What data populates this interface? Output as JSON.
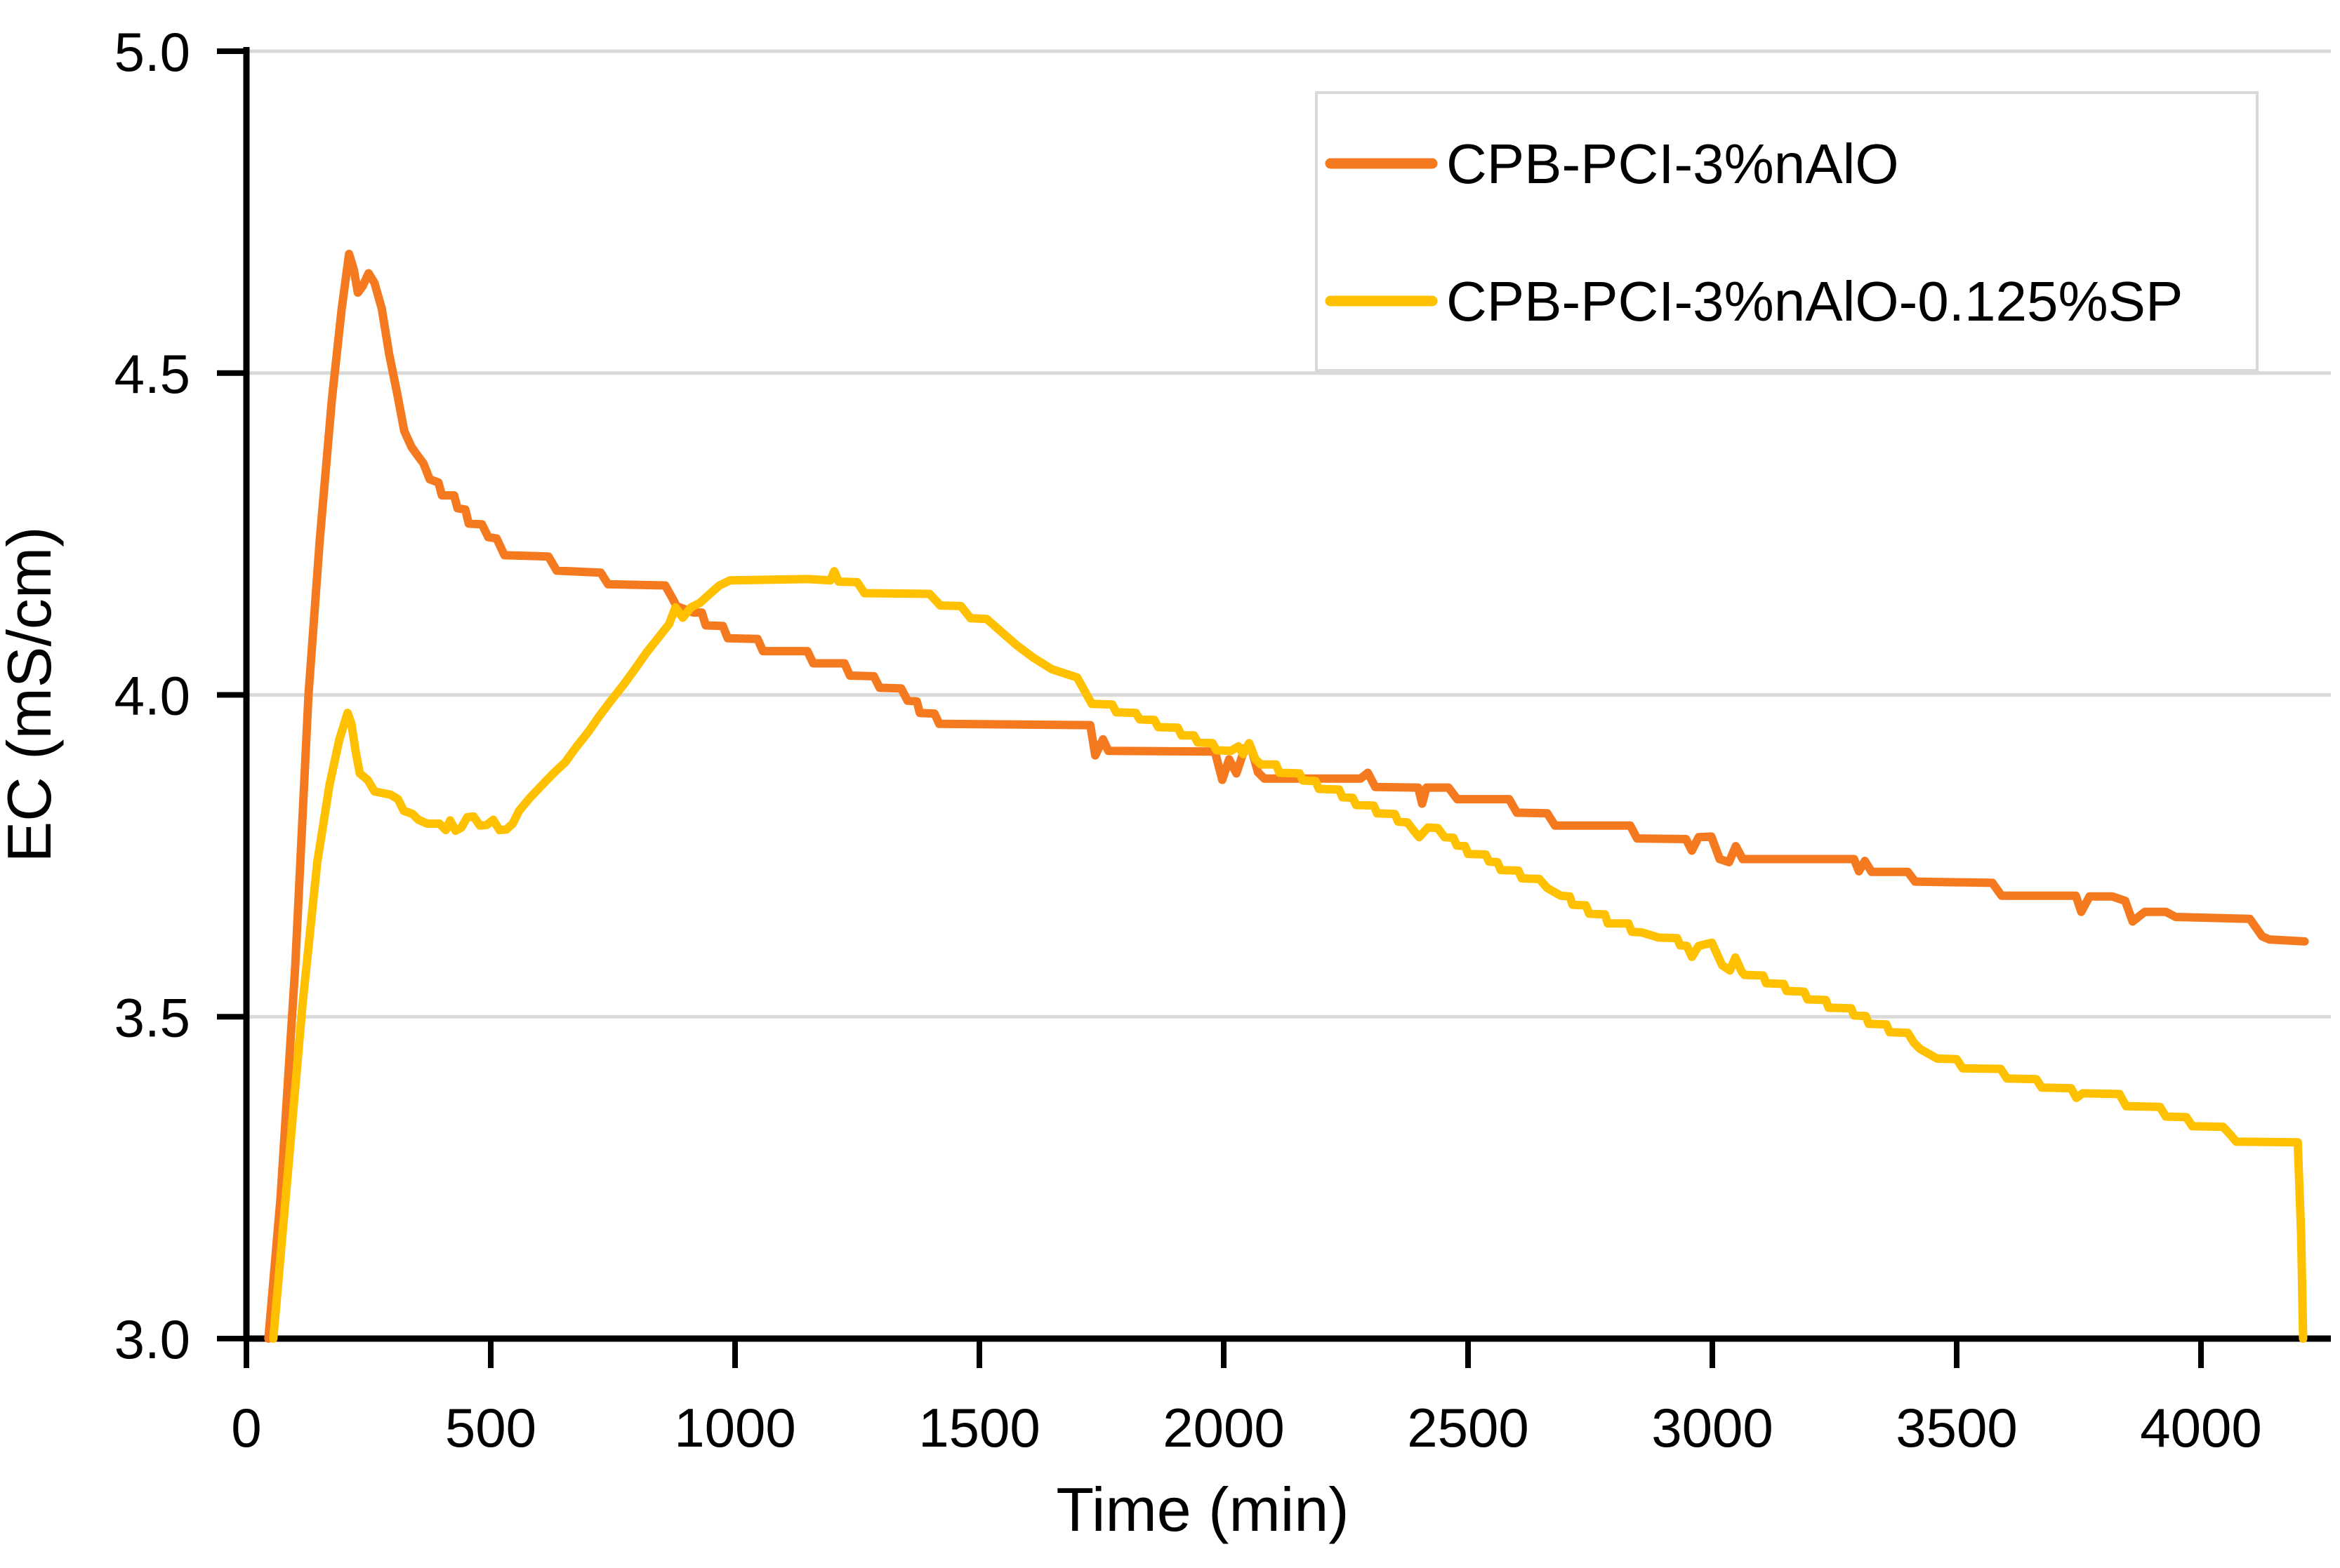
{
  "chart_data": {
    "type": "line",
    "title": "",
    "xlabel": "Time (min)",
    "ylabel": "EC (mS/cm)",
    "xlim": [
      0,
      4250
    ],
    "ylim": [
      3.0,
      5.0
    ],
    "x_ticks": [
      0,
      500,
      1000,
      1500,
      2000,
      2500,
      3000,
      3500,
      4000
    ],
    "y_ticks": [
      "3.0",
      "3.5",
      "4.0",
      "4.5",
      "5.0"
    ],
    "y_tick_values": [
      3.0,
      3.5,
      4.0,
      4.5,
      5.0
    ],
    "grid": "horizontal-only",
    "legend_position": "top-right",
    "legend_border_color": "#D9D9D9",
    "gridline_color": "#D9D9D9",
    "axis_color": "#000000",
    "series": [
      {
        "name": "CPB-PCI-3%nAlO",
        "color": "#F4791F",
        "points": [
          [
            45,
            3.0
          ],
          [
            70,
            3.22
          ],
          [
            100,
            3.58
          ],
          [
            127,
            4.0
          ],
          [
            150,
            4.24
          ],
          [
            175,
            4.46
          ],
          [
            195,
            4.6
          ],
          [
            210,
            4.685
          ],
          [
            220,
            4.66
          ],
          [
            228,
            4.625
          ],
          [
            238,
            4.635
          ],
          [
            250,
            4.655
          ],
          [
            262,
            4.64
          ],
          [
            277,
            4.6
          ],
          [
            292,
            4.53
          ],
          [
            308,
            4.47
          ],
          [
            323,
            4.41
          ],
          [
            338,
            4.385
          ],
          [
            352,
            4.37
          ],
          [
            362,
            4.36
          ],
          [
            375,
            4.335
          ],
          [
            393,
            4.33
          ],
          [
            400,
            4.31
          ],
          [
            425,
            4.31
          ],
          [
            432,
            4.29
          ],
          [
            448,
            4.288
          ],
          [
            455,
            4.266
          ],
          [
            482,
            4.265
          ],
          [
            495,
            4.245
          ],
          [
            512,
            4.243
          ],
          [
            528,
            4.217
          ],
          [
            618,
            4.215
          ],
          [
            635,
            4.193
          ],
          [
            725,
            4.19
          ],
          [
            740,
            4.172
          ],
          [
            857,
            4.17
          ],
          [
            872,
            4.15
          ],
          [
            880,
            4.138
          ],
          [
            915,
            4.128
          ],
          [
            932,
            4.128
          ],
          [
            940,
            4.108
          ],
          [
            975,
            4.107
          ],
          [
            985,
            4.088
          ],
          [
            1046,
            4.087
          ],
          [
            1057,
            4.068
          ],
          [
            1148,
            4.068
          ],
          [
            1160,
            4.049
          ],
          [
            1224,
            4.049
          ],
          [
            1235,
            4.03
          ],
          [
            1284,
            4.029
          ],
          [
            1296,
            4.011
          ],
          [
            1340,
            4.01
          ],
          [
            1353,
            3.991
          ],
          [
            1372,
            3.99
          ],
          [
            1378,
            3.972
          ],
          [
            1408,
            3.971
          ],
          [
            1418,
            3.955
          ],
          [
            1727,
            3.953
          ],
          [
            1737,
            3.906
          ],
          [
            1753,
            3.931
          ],
          [
            1764,
            3.913
          ],
          [
            1982,
            3.912
          ],
          [
            1997,
            3.868
          ],
          [
            2011,
            3.9
          ],
          [
            2026,
            3.878
          ],
          [
            2043,
            3.917
          ],
          [
            2056,
            3.918
          ],
          [
            2070,
            3.88
          ],
          [
            2083,
            3.87
          ],
          [
            2280,
            3.87
          ],
          [
            2295,
            3.879
          ],
          [
            2310,
            3.857
          ],
          [
            2398,
            3.856
          ],
          [
            2406,
            3.831
          ],
          [
            2415,
            3.856
          ],
          [
            2460,
            3.856
          ],
          [
            2478,
            3.838
          ],
          [
            2584,
            3.838
          ],
          [
            2600,
            3.817
          ],
          [
            2662,
            3.816
          ],
          [
            2678,
            3.797
          ],
          [
            2832,
            3.797
          ],
          [
            2846,
            3.777
          ],
          [
            2946,
            3.776
          ],
          [
            2958,
            3.758
          ],
          [
            2972,
            3.779
          ],
          [
            2998,
            3.78
          ],
          [
            3015,
            3.745
          ],
          [
            3034,
            3.74
          ],
          [
            3048,
            3.765
          ],
          [
            3062,
            3.745
          ],
          [
            3290,
            3.745
          ],
          [
            3300,
            3.726
          ],
          [
            3312,
            3.742
          ],
          [
            3326,
            3.725
          ],
          [
            3400,
            3.725
          ],
          [
            3415,
            3.71
          ],
          [
            3573,
            3.708
          ],
          [
            3592,
            3.688
          ],
          [
            3744,
            3.688
          ],
          [
            3755,
            3.663
          ],
          [
            3772,
            3.687
          ],
          [
            3818,
            3.687
          ],
          [
            3845,
            3.68
          ],
          [
            3860,
            3.648
          ],
          [
            3885,
            3.663
          ],
          [
            3928,
            3.663
          ],
          [
            3948,
            3.655
          ],
          [
            4100,
            3.652
          ],
          [
            4125,
            3.625
          ],
          [
            4140,
            3.62
          ],
          [
            4212,
            3.617
          ]
        ]
      },
      {
        "name": "CPB-PCI-3%nAlO-0.125%SP",
        "color": "#FFC000",
        "points": [
          [
            55,
            3.0
          ],
          [
            85,
            3.26
          ],
          [
            115,
            3.52
          ],
          [
            145,
            3.74
          ],
          [
            170,
            3.86
          ],
          [
            190,
            3.93
          ],
          [
            207,
            3.972
          ],
          [
            215,
            3.955
          ],
          [
            224,
            3.91
          ],
          [
            232,
            3.878
          ],
          [
            248,
            3.868
          ],
          [
            262,
            3.85
          ],
          [
            295,
            3.845
          ],
          [
            310,
            3.838
          ],
          [
            322,
            3.82
          ],
          [
            340,
            3.815
          ],
          [
            352,
            3.806
          ],
          [
            370,
            3.8
          ],
          [
            395,
            3.8
          ],
          [
            408,
            3.79
          ],
          [
            417,
            3.805
          ],
          [
            428,
            3.789
          ],
          [
            440,
            3.794
          ],
          [
            452,
            3.81
          ],
          [
            465,
            3.811
          ],
          [
            478,
            3.797
          ],
          [
            492,
            3.798
          ],
          [
            505,
            3.806
          ],
          [
            518,
            3.79
          ],
          [
            532,
            3.791
          ],
          [
            545,
            3.8
          ],
          [
            558,
            3.82
          ],
          [
            580,
            3.84
          ],
          [
            605,
            3.86
          ],
          [
            628,
            3.878
          ],
          [
            652,
            3.895
          ],
          [
            676,
            3.92
          ],
          [
            700,
            3.943
          ],
          [
            723,
            3.968
          ],
          [
            747,
            3.992
          ],
          [
            771,
            4.015
          ],
          [
            795,
            4.04
          ],
          [
            818,
            4.065
          ],
          [
            842,
            4.088
          ],
          [
            865,
            4.11
          ],
          [
            878,
            4.136
          ],
          [
            893,
            4.12
          ],
          [
            910,
            4.136
          ],
          [
            928,
            4.143
          ],
          [
            950,
            4.158
          ],
          [
            968,
            4.17
          ],
          [
            990,
            4.178
          ],
          [
            1150,
            4.18
          ],
          [
            1195,
            4.178
          ],
          [
            1203,
            4.192
          ],
          [
            1212,
            4.176
          ],
          [
            1250,
            4.175
          ],
          [
            1265,
            4.158
          ],
          [
            1398,
            4.157
          ],
          [
            1420,
            4.139
          ],
          [
            1462,
            4.138
          ],
          [
            1482,
            4.119
          ],
          [
            1515,
            4.118
          ],
          [
            1545,
            4.098
          ],
          [
            1575,
            4.078
          ],
          [
            1610,
            4.058
          ],
          [
            1648,
            4.04
          ],
          [
            1700,
            4.027
          ],
          [
            1730,
            3.986
          ],
          [
            1772,
            3.985
          ],
          [
            1780,
            3.973
          ],
          [
            1820,
            3.972
          ],
          [
            1828,
            3.962
          ],
          [
            1858,
            3.961
          ],
          [
            1866,
            3.95
          ],
          [
            1906,
            3.949
          ],
          [
            1914,
            3.937
          ],
          [
            1939,
            3.937
          ],
          [
            1947,
            3.926
          ],
          [
            1977,
            3.925
          ],
          [
            1985,
            3.914
          ],
          [
            2015,
            3.913
          ],
          [
            2030,
            3.92
          ],
          [
            2040,
            3.908
          ],
          [
            2052,
            3.925
          ],
          [
            2065,
            3.9
          ],
          [
            2076,
            3.892
          ],
          [
            2107,
            3.892
          ],
          [
            2114,
            3.879
          ],
          [
            2155,
            3.878
          ],
          [
            2162,
            3.867
          ],
          [
            2188,
            3.866
          ],
          [
            2195,
            3.854
          ],
          [
            2236,
            3.853
          ],
          [
            2243,
            3.841
          ],
          [
            2264,
            3.84
          ],
          [
            2271,
            3.829
          ],
          [
            2307,
            3.828
          ],
          [
            2314,
            3.816
          ],
          [
            2350,
            3.815
          ],
          [
            2357,
            3.803
          ],
          [
            2376,
            3.802
          ],
          [
            2390,
            3.788
          ],
          [
            2400,
            3.779
          ],
          [
            2418,
            3.794
          ],
          [
            2438,
            3.793
          ],
          [
            2452,
            3.779
          ],
          [
            2470,
            3.778
          ],
          [
            2477,
            3.766
          ],
          [
            2494,
            3.765
          ],
          [
            2500,
            3.753
          ],
          [
            2536,
            3.752
          ],
          [
            2543,
            3.741
          ],
          [
            2560,
            3.74
          ],
          [
            2567,
            3.728
          ],
          [
            2603,
            3.727
          ],
          [
            2610,
            3.715
          ],
          [
            2646,
            3.714
          ],
          [
            2662,
            3.7
          ],
          [
            2690,
            3.688
          ],
          [
            2708,
            3.687
          ],
          [
            2714,
            3.674
          ],
          [
            2741,
            3.673
          ],
          [
            2748,
            3.66
          ],
          [
            2780,
            3.659
          ],
          [
            2786,
            3.645
          ],
          [
            2828,
            3.645
          ],
          [
            2835,
            3.632
          ],
          [
            2856,
            3.631
          ],
          [
            2890,
            3.623
          ],
          [
            2928,
            3.622
          ],
          [
            2934,
            3.611
          ],
          [
            2948,
            3.61
          ],
          [
            2958,
            3.593
          ],
          [
            2972,
            3.61
          ],
          [
            2999,
            3.615
          ],
          [
            3020,
            3.58
          ],
          [
            3036,
            3.572
          ],
          [
            3047,
            3.592
          ],
          [
            3060,
            3.57
          ],
          [
            3066,
            3.565
          ],
          [
            3104,
            3.564
          ],
          [
            3110,
            3.552
          ],
          [
            3146,
            3.551
          ],
          [
            3152,
            3.54
          ],
          [
            3188,
            3.539
          ],
          [
            3195,
            3.527
          ],
          [
            3232,
            3.526
          ],
          [
            3238,
            3.514
          ],
          [
            3284,
            3.513
          ],
          [
            3290,
            3.502
          ],
          [
            3314,
            3.501
          ],
          [
            3320,
            3.489
          ],
          [
            3356,
            3.488
          ],
          [
            3363,
            3.476
          ],
          [
            3400,
            3.475
          ],
          [
            3412,
            3.46
          ],
          [
            3425,
            3.45
          ],
          [
            3460,
            3.435
          ],
          [
            3500,
            3.434
          ],
          [
            3512,
            3.42
          ],
          [
            3590,
            3.419
          ],
          [
            3603,
            3.404
          ],
          [
            3663,
            3.403
          ],
          [
            3674,
            3.39
          ],
          [
            3734,
            3.389
          ],
          [
            3745,
            3.374
          ],
          [
            3758,
            3.381
          ],
          [
            3833,
            3.38
          ],
          [
            3847,
            3.361
          ],
          [
            3916,
            3.36
          ],
          [
            3928,
            3.345
          ],
          [
            3970,
            3.344
          ],
          [
            3982,
            3.33
          ],
          [
            4045,
            3.329
          ],
          [
            4060,
            3.317
          ],
          [
            4072,
            3.306
          ],
          [
            4198,
            3.305
          ],
          [
            4205,
            3.16
          ],
          [
            4209,
            3.0
          ]
        ]
      }
    ]
  }
}
